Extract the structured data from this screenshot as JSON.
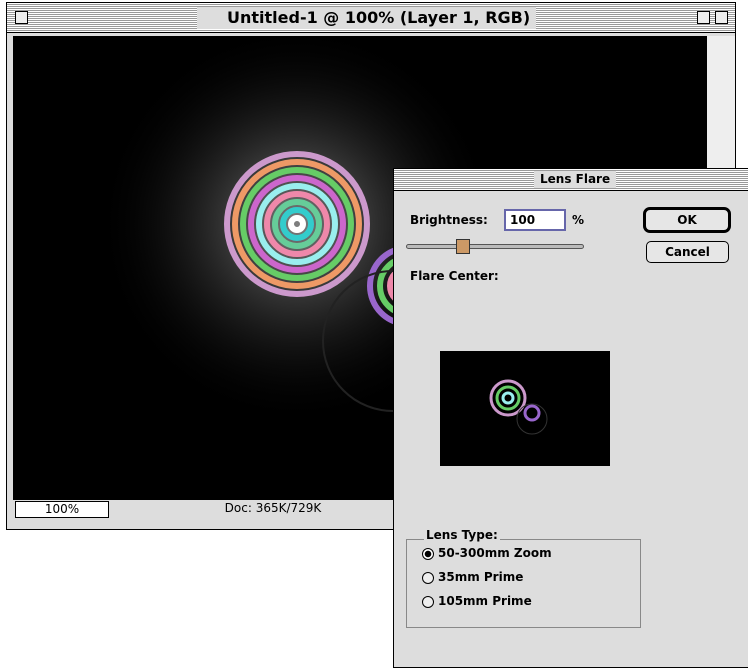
{
  "document_window": {
    "title": "Untitled-1 @ 100% (Layer 1, RGB)",
    "zoom": "100%",
    "doc_info": "Doc: 365K/729K"
  },
  "dialog": {
    "title": "Lens Flare",
    "brightness_label": "Brightness:",
    "brightness": 100,
    "brightness_unit": "%",
    "ok": "OK",
    "cancel": "Cancel",
    "flare_center_label": "Flare Center:",
    "lens_type_label": "Lens Type:",
    "lens_types": [
      {
        "label": "50-300mm Zoom",
        "selected": true
      },
      {
        "label": "35mm Prime",
        "selected": false
      },
      {
        "label": "105mm Prime",
        "selected": false
      }
    ]
  }
}
